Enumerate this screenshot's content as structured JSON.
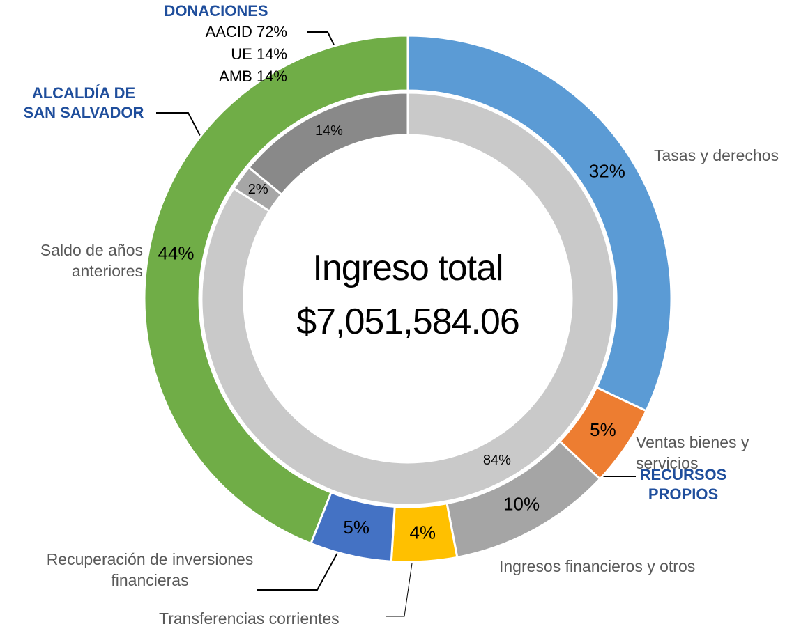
{
  "chart_data": {
    "type": "nested-donut",
    "title": [
      "Ingreso total",
      "$7,051,584.06"
    ],
    "outer": {
      "categories": [
        "Tasas y derechos",
        "Ventas bienes y servicios",
        "Ingresos financieros y otros",
        "Transferencias corrientes",
        "Recuperación de inversiones financieras",
        "Saldo de años anteriores"
      ],
      "values": [
        32,
        5,
        10,
        4,
        5,
        44
      ],
      "value_labels": [
        "32%",
        "5%",
        "10%",
        "4%",
        "5%",
        "44%"
      ],
      "colors": [
        "#5b9bd5",
        "#ed7d31",
        "#a5a5a5",
        "#ffc000",
        "#4472c4",
        "#70ad47"
      ]
    },
    "inner": {
      "categories": [
        "RECURSOS PROPIOS",
        "ALCALDÍA DE SAN SALVADOR",
        "DONACIONES"
      ],
      "values": [
        84,
        2,
        14
      ],
      "value_labels": [
        "84%",
        "2%",
        "14%"
      ],
      "colors": [
        "#c9c9c9",
        "#a6a6a6",
        "#898989"
      ]
    },
    "annotations": [
      "AACID 72%",
      "UE 14%",
      "AMB 14%"
    ]
  }
}
